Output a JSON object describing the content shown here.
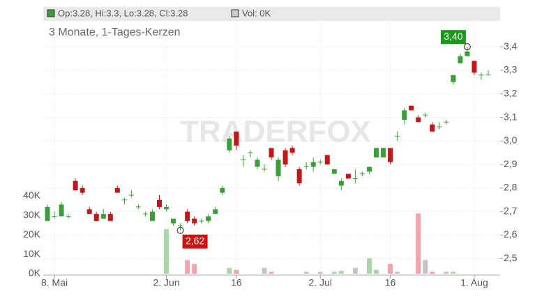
{
  "chart_data": {
    "type": "candlestick",
    "subtitle": "3 Monate, 1-Tages-Kerzen",
    "legend_ohlc": "Op:3.28, Hi:3.3, Lo:3.28, Cl:3.28",
    "legend_volume": "Vol: 0K",
    "watermark": "TRADERFOX",
    "categories": [
      null,
      "8. Mai",
      null,
      null,
      null,
      null,
      null,
      null,
      null,
      null,
      null,
      null,
      null,
      null,
      null,
      null,
      null,
      "2. Jun",
      null,
      null,
      null,
      null,
      null,
      null,
      null,
      null,
      null,
      "16",
      null,
      null,
      null,
      null,
      null,
      null,
      null,
      null,
      null,
      null,
      null,
      "2. Jul",
      null,
      null,
      null,
      null,
      null,
      null,
      null,
      null,
      null,
      "16",
      null,
      null,
      null,
      null,
      null,
      null,
      null,
      null,
      null,
      null,
      null,
      "1. Aug",
      null,
      null
    ],
    "open": [
      2.66,
      2.68,
      2.68,
      2.68,
      2.83,
      2.8,
      2.71,
      2.69,
      2.67,
      2.69,
      2.8,
      2.75,
      2.77,
      2.72,
      2.69,
      2.66,
      2.75,
      2.71,
      2.65,
      2.64,
      2.7,
      2.67,
      2.66,
      2.66,
      2.69,
      2.78,
      2.96,
      3.04,
      2.92,
      2.95,
      2.89,
      2.88,
      2.97,
      2.85,
      2.96,
      2.97,
      2.88,
      2.89,
      2.89,
      2.91,
      2.94,
      2.86,
      2.81,
      2.86,
      2.84,
      2.86,
      2.87,
      2.93,
      2.93,
      2.97,
      3.02,
      3.09,
      3.15,
      3.1,
      3.11,
      3.07,
      3.06,
      3.08,
      3.25,
      3.33,
      3.36,
      3.34,
      3.28,
      3.28
    ],
    "high": [
      2.73,
      2.7,
      2.74,
      2.69,
      2.84,
      2.81,
      2.72,
      2.7,
      2.71,
      2.7,
      2.81,
      2.76,
      2.79,
      2.73,
      2.7,
      2.71,
      2.77,
      2.73,
      2.67,
      2.65,
      2.71,
      2.68,
      2.67,
      2.69,
      2.72,
      2.81,
      3.02,
      3.04,
      2.94,
      2.96,
      2.93,
      2.9,
      2.97,
      2.93,
      2.97,
      2.98,
      2.89,
      2.91,
      2.93,
      2.92,
      2.94,
      2.88,
      2.84,
      2.86,
      2.88,
      2.87,
      2.89,
      2.97,
      2.97,
      2.97,
      3.04,
      3.14,
      3.15,
      3.11,
      3.12,
      3.08,
      3.08,
      3.09,
      3.28,
      3.37,
      3.4,
      3.34,
      3.29,
      3.3
    ],
    "low": [
      2.66,
      2.67,
      2.68,
      2.67,
      2.79,
      2.77,
      2.69,
      2.66,
      2.67,
      2.66,
      2.78,
      2.73,
      2.76,
      2.71,
      2.68,
      2.66,
      2.71,
      2.7,
      2.64,
      2.62,
      2.65,
      2.64,
      2.65,
      2.65,
      2.69,
      2.77,
      2.95,
      2.96,
      2.89,
      2.93,
      2.88,
      2.87,
      2.92,
      2.83,
      2.89,
      2.94,
      2.81,
      2.88,
      2.87,
      2.9,
      2.9,
      2.86,
      2.79,
      2.84,
      2.82,
      2.85,
      2.86,
      2.93,
      2.93,
      2.9,
      3.0,
      3.07,
      3.13,
      3.08,
      3.1,
      3.04,
      3.05,
      3.07,
      3.24,
      3.33,
      3.36,
      3.28,
      3.26,
      3.28
    ],
    "close": [
      2.72,
      2.68,
      2.73,
      2.68,
      2.79,
      2.78,
      2.69,
      2.66,
      2.69,
      2.66,
      2.78,
      2.75,
      2.77,
      2.72,
      2.69,
      2.7,
      2.72,
      2.72,
      2.67,
      2.64,
      2.66,
      2.65,
      2.66,
      2.68,
      2.71,
      2.8,
      3.01,
      2.98,
      2.92,
      2.95,
      2.92,
      2.88,
      2.93,
      2.92,
      2.9,
      2.95,
      2.82,
      2.89,
      2.91,
      2.91,
      2.9,
      2.88,
      2.83,
      2.84,
      2.84,
      2.86,
      2.89,
      2.97,
      2.97,
      2.91,
      3.02,
      3.13,
      3.13,
      3.08,
      3.11,
      3.04,
      3.06,
      3.08,
      3.28,
      3.36,
      3.38,
      3.29,
      3.28,
      3.28
    ],
    "volume": [
      0,
      0,
      0,
      0,
      0,
      0,
      0,
      0,
      0,
      0,
      0,
      0,
      0,
      0,
      0,
      0,
      0,
      23000,
      0,
      0,
      7000,
      5000,
      0,
      0,
      0,
      0,
      3000,
      2000,
      0,
      0,
      0,
      3000,
      1000,
      0,
      0,
      0,
      0,
      1000,
      0,
      1000,
      0,
      1000,
      1500,
      0,
      3000,
      0,
      8000,
      2000,
      0,
      5000,
      1000,
      0,
      0,
      31000,
      7000,
      1000,
      0,
      1000,
      1000,
      0,
      0,
      0,
      0,
      0
    ],
    "ylim": [
      2.43,
      3.51
    ],
    "yticks": [
      {
        "value": 2.5,
        "label": "2,5"
      },
      {
        "value": 2.6,
        "label": "2,6"
      },
      {
        "value": 2.7,
        "label": "2,7"
      },
      {
        "value": 2.8,
        "label": "2,8"
      },
      {
        "value": 2.9,
        "label": "2,9"
      },
      {
        "value": 3.0,
        "label": "3,0"
      },
      {
        "value": 3.1,
        "label": "3,1"
      },
      {
        "value": 3.2,
        "label": "3,2"
      },
      {
        "value": 3.3,
        "label": "3,3"
      },
      {
        "value": 3.4,
        "label": "3,4"
      }
    ],
    "y2lim": [
      0,
      130000
    ],
    "y2ticks": [
      {
        "value": 0,
        "label": "0K"
      },
      {
        "value": 10000,
        "label": "10K"
      },
      {
        "value": 20000,
        "label": "20K"
      },
      {
        "value": 30000,
        "label": "30K"
      },
      {
        "value": 40000,
        "label": "40K"
      }
    ],
    "annotations": [
      {
        "label": "3,40",
        "value": 3.4,
        "index": 60,
        "color": "#1a9a1a"
      },
      {
        "label": "2,62",
        "value": 2.62,
        "index": 19,
        "color": "#cc1111"
      }
    ],
    "up_color": "#3a9e3a",
    "down_color": "#c01818",
    "grid": true
  }
}
